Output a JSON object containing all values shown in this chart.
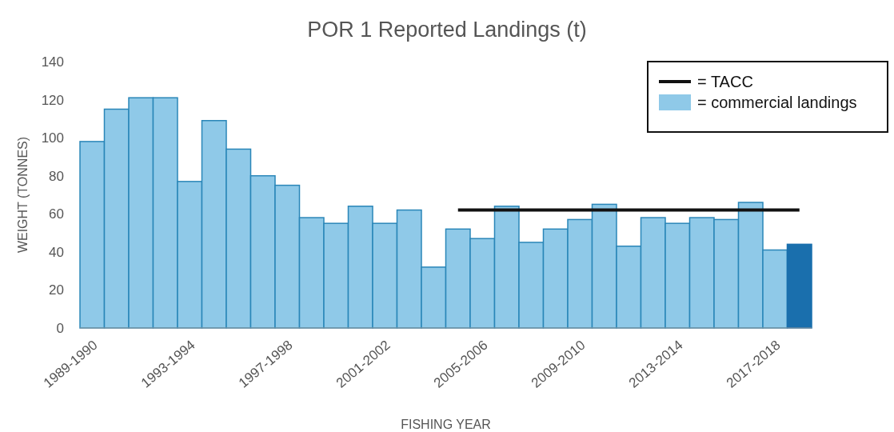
{
  "chart_data": {
    "type": "bar",
    "title": "POR 1 Reported Landings (t)",
    "xlabel": "FISHING YEAR",
    "ylabel": "WEIGHT (TONNES)",
    "categories": [
      "1989-1990",
      null,
      null,
      null,
      "1993-1994",
      null,
      null,
      null,
      "1997-1998",
      null,
      null,
      null,
      "2001-2002",
      null,
      null,
      null,
      "2005-2006",
      null,
      null,
      null,
      "2009-2010",
      null,
      null,
      null,
      "2013-2014",
      null,
      null,
      null,
      "2017-2018",
      null
    ],
    "series": [
      {
        "name": "= commercial landings",
        "color": "#8fc9e8",
        "colors": [
          "#8fc9e8",
          "#8fc9e8",
          "#8fc9e8",
          "#8fc9e8",
          "#8fc9e8",
          "#8fc9e8",
          "#8fc9e8",
          "#8fc9e8",
          "#8fc9e8",
          "#8fc9e8",
          "#8fc9e8",
          "#8fc9e8",
          "#8fc9e8",
          "#8fc9e8",
          "#8fc9e8",
          "#8fc9e8",
          "#8fc9e8",
          "#8fc9e8",
          "#8fc9e8",
          "#8fc9e8",
          "#8fc9e8",
          "#8fc9e8",
          "#8fc9e8",
          "#8fc9e8",
          "#8fc9e8",
          "#8fc9e8",
          "#8fc9e8",
          "#8fc9e8",
          "#8fc9e8",
          "#1a6fad"
        ],
        "values": [
          98,
          115,
          121,
          121,
          77,
          109,
          94,
          80,
          75,
          58,
          55,
          64,
          55,
          62,
          32,
          52,
          47,
          64,
          45,
          52,
          57,
          65,
          43,
          58,
          55,
          58,
          57,
          66,
          41,
          44
        ]
      },
      {
        "name": "= TACC",
        "type": "line",
        "color": "#111111",
        "values": [
          null,
          null,
          null,
          null,
          null,
          null,
          null,
          null,
          null,
          null,
          null,
          null,
          null,
          null,
          null,
          62,
          62,
          62,
          62,
          62,
          62,
          62,
          62,
          62,
          62,
          62,
          62,
          62,
          62,
          62
        ]
      }
    ],
    "ylim": [
      0,
      140
    ],
    "yticks": [
      0,
      20,
      40,
      60,
      80,
      100,
      120,
      140
    ],
    "legend": "top right"
  }
}
